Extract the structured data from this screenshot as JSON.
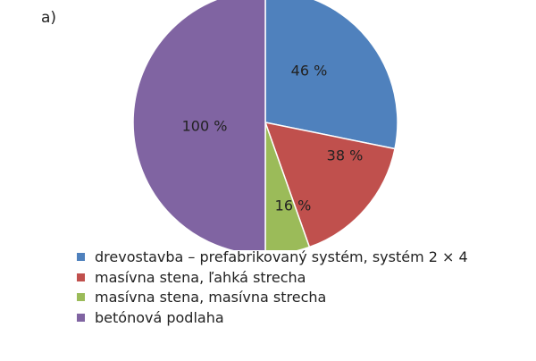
{
  "panel_label": "a)",
  "chart_data": {
    "type": "pie",
    "values": [
      46,
      38,
      16,
      100
    ],
    "data_labels": [
      "46 %",
      "38 %",
      "16 %",
      "100 %"
    ],
    "colors": [
      "#4f81bd",
      "#c0504d",
      "#9bbb59",
      "#8064a2"
    ],
    "legend_position": "bottom-left"
  },
  "legend": {
    "items": [
      {
        "label": "drevostavba – prefabrikovaný systém, systém 2 × 4",
        "color": "#4f81bd"
      },
      {
        "label": "masívna stena, ľahká strecha",
        "color": "#c0504d"
      },
      {
        "label": "masívna stena, masívna strecha",
        "color": "#9bbb59"
      },
      {
        "label": "betónová podlaha",
        "color": "#8064a2"
      }
    ]
  }
}
